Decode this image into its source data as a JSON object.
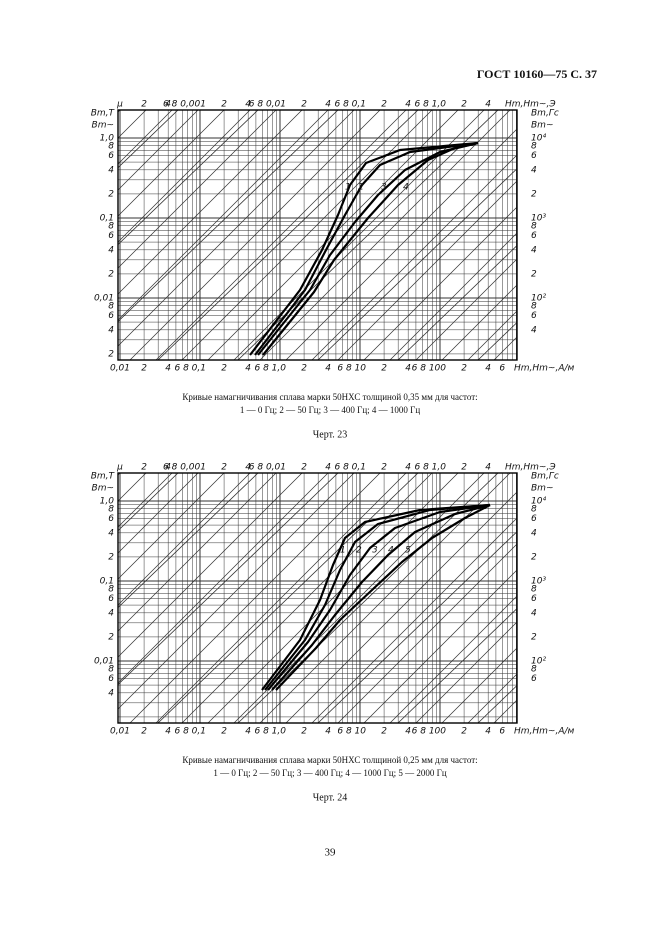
{
  "header": "ГОСТ 10160—75 С. 37",
  "figures": [
    {
      "top_title": "Hm,Hm~,Э",
      "top_axis": [
        "μ",
        "2",
        "4",
        "6 8 0,001",
        "2",
        "4",
        "6 8 0,01",
        "2",
        "4",
        "6 8 0,1",
        "2",
        "4",
        "6 8 1,0",
        "2",
        "4"
      ],
      "bottom_title": "Hm,Hm~,A/м",
      "bottom_axis": [
        "0,01",
        "2",
        "4",
        "6 8 0,1",
        "2",
        "4",
        "6 8 1,0",
        "2",
        "4",
        "6 8 10",
        "2",
        "4",
        "6 8 100",
        "2",
        "4",
        "6"
      ],
      "left_title": [
        "Bm,T",
        "Bm~"
      ],
      "left_axis": [
        "1,0",
        "8",
        "6",
        "4",
        "2",
        "0,1",
        "8",
        "6",
        "4",
        "2",
        "0,01",
        "8",
        "6",
        "4",
        "2"
      ],
      "right_title": [
        "Bm,Гс",
        "Bm~"
      ],
      "right_axis": [
        "10⁴",
        "8",
        "6",
        "4",
        "2",
        "10³",
        "8",
        "6",
        "4",
        "2",
        "10²",
        "8",
        "6",
        "4"
      ],
      "curve_labels": [
        "1",
        "2",
        "3",
        "4"
      ],
      "caption": [
        "Кривые намагничивания сплава марки 50НХС  толщиной 0,35  мм для частот:",
        "1 — 0 Гц; 2 — 50 Гц; 3 — 400 Гц; 4 — 1000 Гц"
      ],
      "label": "Черт. 23"
    },
    {
      "top_title": "Hm,Hm~,Э",
      "top_axis": [
        "μ",
        "2",
        "4",
        "6 8 0,001",
        "2",
        "4",
        "6 8 0,01",
        "2",
        "4",
        "6 8 0,1",
        "2",
        "4",
        "6 8 1,0",
        "2",
        "4"
      ],
      "bottom_title": "Hm,Hm~,A/м",
      "bottom_axis": [
        "0,01",
        "2",
        "4",
        "6 8 0,1",
        "2",
        "4",
        "6 8 1,0",
        "2",
        "4",
        "6 8 10",
        "2",
        "4",
        "6 8 100",
        "2",
        "4",
        "6"
      ],
      "left_title": [
        "Bm,T",
        "Bm~"
      ],
      "left_axis": [
        "1,0",
        "8",
        "6",
        "4",
        "2",
        "0,1",
        "8",
        "6",
        "4",
        "2",
        "0,01",
        "8",
        "6",
        "4"
      ],
      "right_title": [
        "Bm,Гс",
        "Bm~"
      ],
      "right_axis": [
        "10⁴",
        "8",
        "6",
        "4",
        "2",
        "10³",
        "8",
        "6",
        "4",
        "2",
        "10²",
        "8",
        "6"
      ],
      "curve_labels": [
        "1",
        "2",
        "3",
        "4",
        "5"
      ],
      "caption": [
        "Кривые намагничивания сплава марки 50НХС  толщиной 0,25  мм для частот:",
        "1 — 0 Гц; 2 — 50 Гц; 3 — 400 Гц; 4 — 1000 Гц; 5 — 2000 Гц"
      ],
      "label": "Черт. 24"
    }
  ],
  "page_number": "39"
}
